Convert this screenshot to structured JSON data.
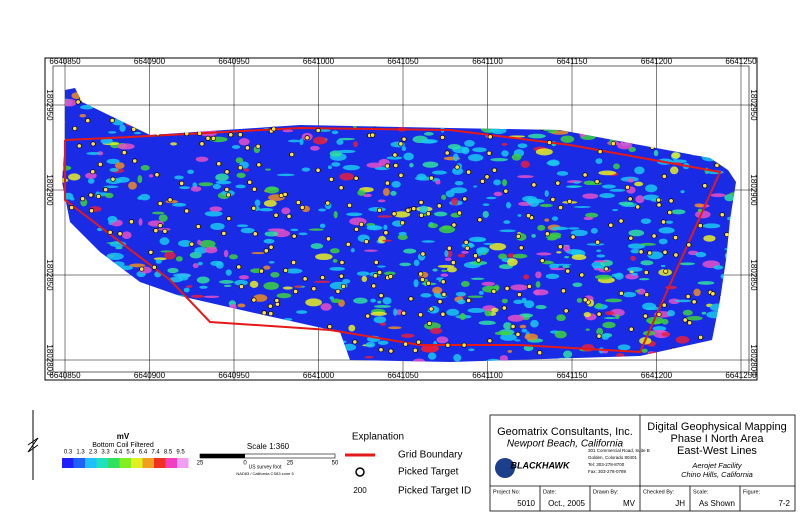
{
  "map": {
    "xticks": [
      6640850,
      6640900,
      6640950,
      6641000,
      6641050,
      6641100,
      6641150,
      6641200,
      6641250
    ],
    "yticks": [
      1802950,
      1802900,
      1802850,
      1802800
    ],
    "legend": {
      "unit": "mV",
      "title": "Bottom Coil Filtered",
      "scale_labels": [
        0.3,
        1.3,
        2.3,
        3.3,
        4.4,
        5.4,
        6.4,
        7.4,
        8.5,
        9.5
      ]
    },
    "scale_bar": {
      "title": "Scale 1:360",
      "labels": [
        "25",
        "0",
        "25",
        "50"
      ],
      "unit": "US survey foot",
      "datum": "NAD83 / California CS83 zone 5"
    },
    "explanation": {
      "title": "Explanation",
      "grid_boundary": "Grid Boundary",
      "picked_target": "Picked Target",
      "target_id_sample": "200",
      "picked_target_id": "Picked Target ID"
    }
  },
  "title_block": {
    "company": "Geomatrix Consultants, Inc.",
    "company_city": "Newport Beach, California",
    "logo": "BLACKHAWK",
    "address": [
      "301 Commercial Road, Suite B",
      "Golden, Colorado 80401",
      "Tel: 303-278-8700",
      "Fax: 303-278-0789"
    ],
    "title": [
      "Digital Geophysical Mapping",
      "Phase I North Area",
      "East-West Lines"
    ],
    "site": [
      "Aerojet Facility",
      "Chino Hills, California"
    ],
    "fields": [
      {
        "label": "Project No:",
        "value": "5010"
      },
      {
        "label": "Date:",
        "value": "Oct., 2005"
      },
      {
        "label": "Drawn By:",
        "value": "MV"
      },
      {
        "label": "Checked By:",
        "value": "JH"
      },
      {
        "label": "Scale:",
        "value": "As Shown"
      },
      {
        "label": "Figure:",
        "value": "7-2"
      }
    ]
  }
}
